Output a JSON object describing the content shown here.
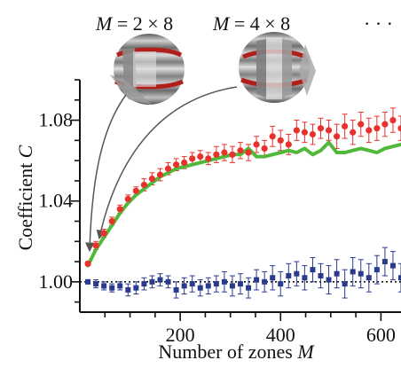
{
  "chart_data": {
    "type": "scatter",
    "xlabel": "Number of zones M",
    "ylabel": "Coefficient C",
    "xlim": [
      0,
      640
    ],
    "ylim": [
      0.985,
      1.1
    ],
    "x_ticks": [
      "200",
      "400",
      "600"
    ],
    "x_tick_values": [
      200,
      400,
      600
    ],
    "y_ticks": [
      "1.00",
      "1.04",
      "1.08"
    ],
    "y_tick_values": [
      1.0,
      1.04,
      1.08
    ],
    "reference_line": 1.0,
    "annotations": [
      "M = 2 × 8",
      "M = 4 × 8",
      "· · ·"
    ],
    "series": [
      {
        "marker": "circle",
        "color": "#e8322b",
        "x": [
          16,
          32,
          48,
          64,
          80,
          96,
          112,
          128,
          144,
          160,
          176,
          192,
          208,
          224,
          240,
          256,
          272,
          288,
          304,
          320,
          336,
          352,
          368,
          384,
          400,
          416,
          432,
          448,
          464,
          480,
          496,
          512,
          528,
          544,
          560,
          576,
          592,
          608,
          624,
          640
        ],
        "y": [
          1.009,
          1.018,
          1.024,
          1.03,
          1.036,
          1.041,
          1.045,
          1.048,
          1.051,
          1.053,
          1.056,
          1.058,
          1.059,
          1.061,
          1.062,
          1.061,
          1.063,
          1.064,
          1.063,
          1.065,
          1.064,
          1.068,
          1.066,
          1.072,
          1.07,
          1.068,
          1.075,
          1.074,
          1.073,
          1.076,
          1.075,
          1.072,
          1.077,
          1.074,
          1.078,
          1.075,
          1.076,
          1.078,
          1.08,
          1.076
        ],
        "err": [
          0.001,
          0.002,
          0.002,
          0.002,
          0.002,
          0.002,
          0.002,
          0.003,
          0.003,
          0.003,
          0.003,
          0.003,
          0.003,
          0.003,
          0.003,
          0.003,
          0.004,
          0.004,
          0.004,
          0.004,
          0.004,
          0.004,
          0.004,
          0.005,
          0.005,
          0.005,
          0.005,
          0.005,
          0.005,
          0.005,
          0.005,
          0.006,
          0.006,
          0.006,
          0.006,
          0.006,
          0.006,
          0.006,
          0.006,
          0.006
        ]
      },
      {
        "marker": "line",
        "color": "#52b83a",
        "x": [
          16,
          32,
          48,
          64,
          80,
          96,
          112,
          128,
          144,
          160,
          176,
          192,
          208,
          224,
          240,
          256,
          272,
          288,
          304,
          320,
          336,
          352,
          368,
          384,
          400,
          416,
          432,
          448,
          464,
          480,
          496,
          512,
          528,
          544,
          560,
          576,
          592,
          608,
          624,
          640
        ],
        "y": [
          1.008,
          1.016,
          1.022,
          1.028,
          1.034,
          1.039,
          1.043,
          1.046,
          1.049,
          1.052,
          1.054,
          1.056,
          1.057,
          1.058,
          1.059,
          1.06,
          1.061,
          1.062,
          1.063,
          1.063,
          1.066,
          1.062,
          1.062,
          1.063,
          1.064,
          1.065,
          1.064,
          1.066,
          1.063,
          1.065,
          1.069,
          1.064,
          1.064,
          1.065,
          1.066,
          1.065,
          1.064,
          1.066,
          1.067,
          1.068
        ]
      },
      {
        "marker": "square",
        "color": "#2a3a8c",
        "x": [
          16,
          32,
          48,
          64,
          80,
          96,
          112,
          128,
          144,
          160,
          176,
          192,
          208,
          224,
          240,
          256,
          272,
          288,
          304,
          320,
          336,
          352,
          368,
          384,
          400,
          416,
          432,
          448,
          464,
          480,
          496,
          512,
          528,
          544,
          560,
          576,
          592,
          608,
          624,
          640
        ],
        "y": [
          1.0,
          0.999,
          0.998,
          0.997,
          0.998,
          0.996,
          0.997,
          0.999,
          1.0,
          1.001,
          1.0,
          0.996,
          0.998,
          0.999,
          0.997,
          0.998,
          0.999,
          1.0,
          0.998,
          0.999,
          0.997,
          1.001,
          1.0,
          1.002,
          0.999,
          1.003,
          1.004,
          1.002,
          1.006,
          1.003,
          1.001,
          1.004,
          0.999,
          1.005,
          1.004,
          1.002,
          1.006,
          1.01,
          1.008,
          1.002
        ],
        "err": [
          0.001,
          0.002,
          0.002,
          0.002,
          0.002,
          0.003,
          0.003,
          0.003,
          0.003,
          0.003,
          0.003,
          0.004,
          0.004,
          0.004,
          0.004,
          0.004,
          0.004,
          0.005,
          0.005,
          0.005,
          0.005,
          0.005,
          0.005,
          0.006,
          0.006,
          0.006,
          0.006,
          0.006,
          0.006,
          0.006,
          0.007,
          0.007,
          0.007,
          0.007,
          0.007,
          0.007,
          0.007,
          0.007,
          0.007,
          0.007
        ]
      }
    ]
  },
  "labels": {
    "xlabel_main": "Number of zones ",
    "xlabel_var": "M",
    "ylabel_main": "Coefficient ",
    "ylabel_var": "C",
    "note1_var": "M",
    "note1_rest": " = 2 × 8",
    "note2_var": "M",
    "note2_rest": " = 4 × 8",
    "note3": "· · ·"
  }
}
